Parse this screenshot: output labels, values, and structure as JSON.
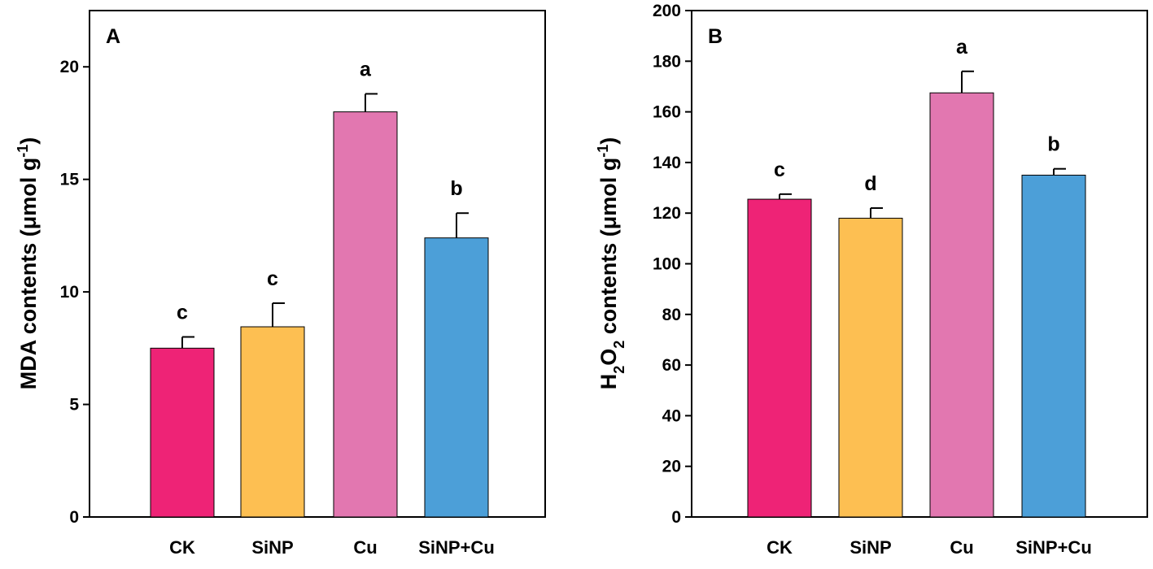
{
  "chart_data": [
    {
      "type": "bar",
      "panel_label": "A",
      "categories": [
        "CK",
        "SiNP",
        "Cu",
        "SiNP+Cu"
      ],
      "values": [
        7.5,
        8.45,
        18.0,
        12.4
      ],
      "errors": [
        0.5,
        1.05,
        0.8,
        1.1
      ],
      "significance": [
        "c",
        "c",
        "a",
        "b"
      ],
      "colors": [
        "#ee2376",
        "#fdbf52",
        "#e277b0",
        "#4c9fd8"
      ],
      "ylabel": {
        "main": "MDA contents (μmol g",
        "sup": "-1",
        "close": ")"
      },
      "ylim": [
        0,
        22.5
      ],
      "yticks": [
        0,
        5,
        10,
        15,
        20
      ],
      "grid": false
    },
    {
      "type": "bar",
      "panel_label": "B",
      "categories": [
        "CK",
        "SiNP",
        "Cu",
        "SiNP+Cu"
      ],
      "values": [
        125.5,
        118.0,
        167.5,
        135.0
      ],
      "errors": [
        2.0,
        4.0,
        8.5,
        2.5
      ],
      "significance": [
        "c",
        "d",
        "a",
        "b"
      ],
      "colors": [
        "#ee2376",
        "#fdbf52",
        "#e277b0",
        "#4c9fd8"
      ],
      "ylabel": {
        "h": "H",
        "sub1": "2",
        "o": "O",
        "sub2": "2",
        "rest": " contents (μmol g",
        "sup": "-1",
        "close": ")"
      },
      "ylim": [
        0,
        200
      ],
      "yticks": [
        0,
        20,
        40,
        60,
        80,
        100,
        120,
        140,
        160,
        180,
        200
      ],
      "grid": false
    }
  ]
}
